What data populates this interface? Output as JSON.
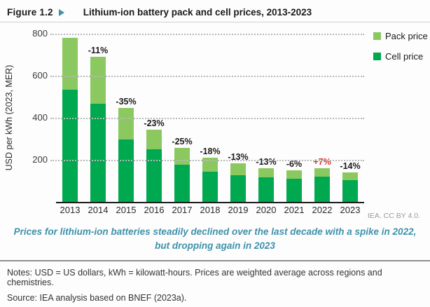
{
  "header": {
    "figure_label": "Figure 1.2",
    "title": "Lithium-ion battery pack and cell prices, 2013-2023"
  },
  "chart_data": {
    "type": "bar",
    "stacked": true,
    "title": "Lithium-ion battery pack and cell prices, 2013-2023",
    "xlabel": "",
    "ylabel": "USD per kWh (2023, MER)",
    "ylim": [
      0,
      800
    ],
    "yticks": [
      200,
      400,
      600,
      800
    ],
    "grid": "dotted-horizontal",
    "categories": [
      "2013",
      "2014",
      "2015",
      "2016",
      "2017",
      "2018",
      "2019",
      "2020",
      "2021",
      "2022",
      "2023"
    ],
    "series": [
      {
        "name": "Cell price",
        "color": "#00a84f",
        "values": [
          533,
          467,
          297,
          250,
          178,
          145,
          128,
          116,
          110,
          120,
          104
        ]
      },
      {
        "name": "Pack price",
        "color": "#8cc860",
        "values": [
          247,
          223,
          151,
          95,
          80,
          66,
          55,
          43,
          40,
          41,
          35
        ]
      }
    ],
    "totals": [
      780,
      690,
      448,
      345,
      258,
      211,
      183,
      159,
      150,
      161,
      139
    ],
    "bar_labels": [
      "",
      "-11%",
      "-35%",
      "-23%",
      "-25%",
      "-18%",
      "-13%",
      "-13%",
      "-6%",
      "+7%",
      "-14%"
    ],
    "bar_label_colors": [
      "#1a1a1a",
      "#1a1a1a",
      "#1a1a1a",
      "#1a1a1a",
      "#1a1a1a",
      "#1a1a1a",
      "#1a1a1a",
      "#1a1a1a",
      "#1a1a1a",
      "#d7352e",
      "#1a1a1a"
    ],
    "legend_position": "top-right",
    "legend": [
      {
        "label": "Pack price",
        "color": "#8cc860"
      },
      {
        "label": "Cell price",
        "color": "#00a84f"
      }
    ]
  },
  "attribution": "IEA. CC BY 4.0.",
  "caption": {
    "line1": "Prices for lithium-ion batteries steadily declined over the last decade with a spike in 2022,",
    "line2": "but dropping again in 2023"
  },
  "notes": "Notes: USD = US dollars, kWh = kilowatt-hours. Prices are weighted average across regions and chemistries.",
  "source": "Source: IEA analysis based on BNEF (2023a).",
  "colors": {
    "accent_teal": "#3e91ab",
    "cell_green": "#00a84f",
    "pack_green": "#8cc860",
    "highlight_red": "#d7352e"
  }
}
